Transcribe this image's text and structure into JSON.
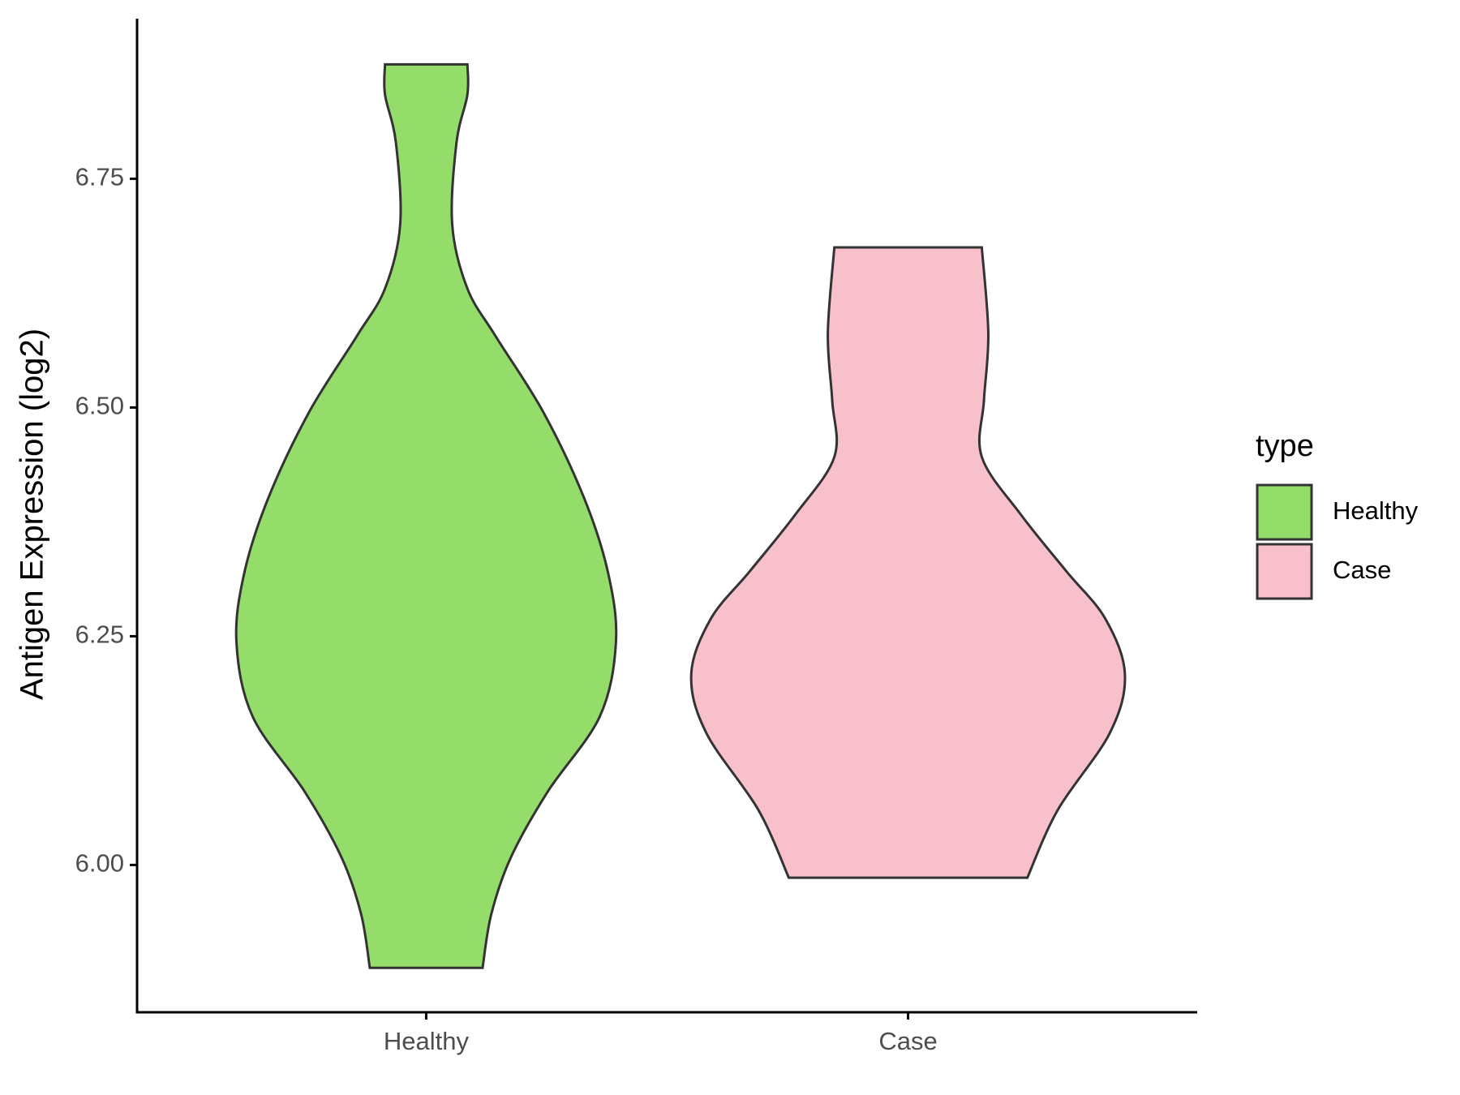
{
  "chart_data": {
    "type": "violin",
    "y_label": "Antigen Expression (log2)",
    "categories": [
      "Healthy",
      "Case"
    ],
    "legend_title": "type",
    "legend": "right",
    "ylim": [
      5.839,
      6.925
    ],
    "yticks": [
      {
        "value": 6,
        "label": "6.00"
      },
      6.25,
      {
        "value": 6.5,
        "label": "6.50"
      },
      6.75
    ],
    "series": [
      {
        "name": "Healthy",
        "color": "#94dd6b",
        "y": [
          6.875,
          6.842,
          6.79,
          6.7,
          6.63,
          6.578,
          6.495,
          6.4,
          6.318,
          6.243,
          6.162,
          6.08,
          6.008,
          5.946,
          5.8875
        ],
        "density": [
          0.19,
          0.19,
          0.14,
          0.12,
          0.19,
          0.32,
          0.54,
          0.73,
          0.84,
          0.875,
          0.8,
          0.56,
          0.39,
          0.3,
          0.26
        ]
      },
      {
        "name": "Case",
        "color": "#f7c0cb",
        "y": [
          6.675,
          6.581,
          6.508,
          6.446,
          6.383,
          6.321,
          6.269,
          6.208,
          6.144,
          6.06,
          5.986
        ],
        "density": [
          0.34,
          0.37,
          0.35,
          0.34,
          0.52,
          0.73,
          0.91,
          1,
          0.93,
          0.69,
          0.55
        ]
      }
    ]
  }
}
